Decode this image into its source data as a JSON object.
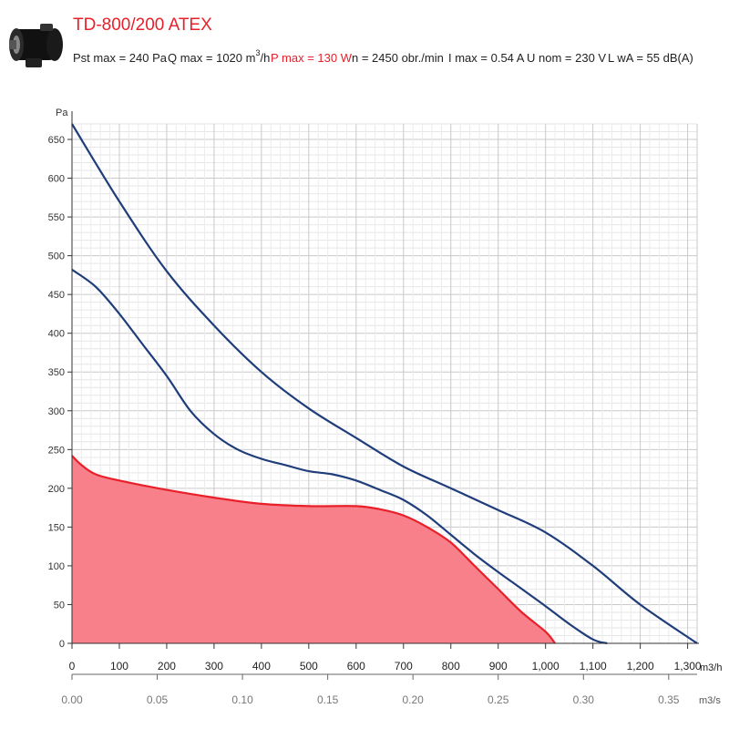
{
  "header": {
    "title": "TD-800/200 ATEX",
    "pst": "Pst max = 240 Pa",
    "q_prefix": "Q max = 1020 m",
    "q_sup": "3",
    "q_suffix": "/h",
    "p": "P max = 130 W",
    "n": "n = 2450 obr./min",
    "i": "I max = 0.54 A",
    "u": "U nom = 230 V",
    "l": "L wA = 55 dB(A)",
    "highlight_color": "#e8202a"
  },
  "chart_data": {
    "type": "area",
    "ylabel": "Pa",
    "xlabel": "m3/h",
    "x2label": "m3/s",
    "xlim": [
      0,
      1320
    ],
    "ylim": [
      0,
      670
    ],
    "y_ticks": [
      0,
      50,
      100,
      150,
      200,
      250,
      300,
      350,
      400,
      450,
      500,
      550,
      600,
      650
    ],
    "x_ticks": [
      0,
      100,
      200,
      300,
      400,
      500,
      600,
      700,
      800,
      900,
      1000,
      1100,
      1200,
      1300
    ],
    "x_tick_labels": [
      "0",
      "100",
      "200",
      "300",
      "400",
      "500",
      "600",
      "700",
      "800",
      "900",
      "1,000",
      "1,100",
      "1,200",
      "1,300"
    ],
    "x2_ticks": [
      0.0,
      0.05,
      0.1,
      0.15,
      0.2,
      0.25,
      0.3,
      0.35
    ],
    "x2_tick_labels": [
      "0.00",
      "0.05",
      "0.10",
      "0.15",
      "0.20",
      "0.25",
      "0.30",
      "0.35"
    ],
    "grid": true,
    "series": [
      {
        "color": "#1f3d7a",
        "fill": false,
        "points": [
          [
            0,
            670
          ],
          [
            100,
            570
          ],
          [
            200,
            480
          ],
          [
            300,
            410
          ],
          [
            400,
            350
          ],
          [
            500,
            303
          ],
          [
            600,
            265
          ],
          [
            700,
            228
          ],
          [
            800,
            200
          ],
          [
            900,
            172
          ],
          [
            1000,
            143
          ],
          [
            1100,
            100
          ],
          [
            1200,
            50
          ],
          [
            1320,
            0
          ]
        ]
      },
      {
        "color": "#1f3d7a",
        "fill": false,
        "points": [
          [
            0,
            482
          ],
          [
            50,
            460
          ],
          [
            100,
            425
          ],
          [
            150,
            385
          ],
          [
            200,
            345
          ],
          [
            250,
            300
          ],
          [
            300,
            270
          ],
          [
            350,
            250
          ],
          [
            400,
            238
          ],
          [
            450,
            230
          ],
          [
            500,
            222
          ],
          [
            550,
            218
          ],
          [
            600,
            210
          ],
          [
            650,
            198
          ],
          [
            700,
            185
          ],
          [
            750,
            165
          ],
          [
            800,
            140
          ],
          [
            850,
            115
          ],
          [
            900,
            92
          ],
          [
            950,
            70
          ],
          [
            1000,
            48
          ],
          [
            1050,
            25
          ],
          [
            1100,
            5
          ],
          [
            1130,
            0
          ]
        ]
      },
      {
        "color": "#e8202a",
        "fill": true,
        "fill_color": "#f7808a",
        "points": [
          [
            0,
            242
          ],
          [
            20,
            230
          ],
          [
            50,
            218
          ],
          [
            100,
            210
          ],
          [
            200,
            198
          ],
          [
            300,
            188
          ],
          [
            400,
            180
          ],
          [
            500,
            177
          ],
          [
            600,
            177
          ],
          [
            650,
            173
          ],
          [
            700,
            165
          ],
          [
            750,
            150
          ],
          [
            800,
            130
          ],
          [
            850,
            100
          ],
          [
            900,
            70
          ],
          [
            950,
            40
          ],
          [
            1000,
            15
          ],
          [
            1020,
            0
          ]
        ]
      }
    ]
  }
}
